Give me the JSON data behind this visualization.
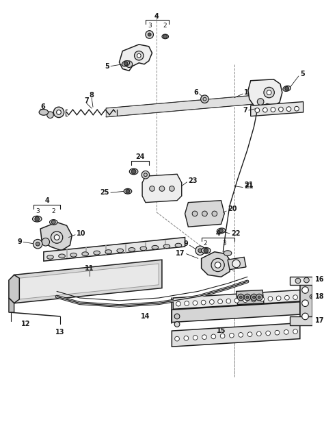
{
  "bg_color": "#ffffff",
  "line_color": "#1a1a1a",
  "fig_width": 4.74,
  "fig_height": 6.22,
  "dpi": 100,
  "gray_fill": "#d8d8d8",
  "light_fill": "#eeeeee",
  "mid_fill": "#c8c8c8"
}
